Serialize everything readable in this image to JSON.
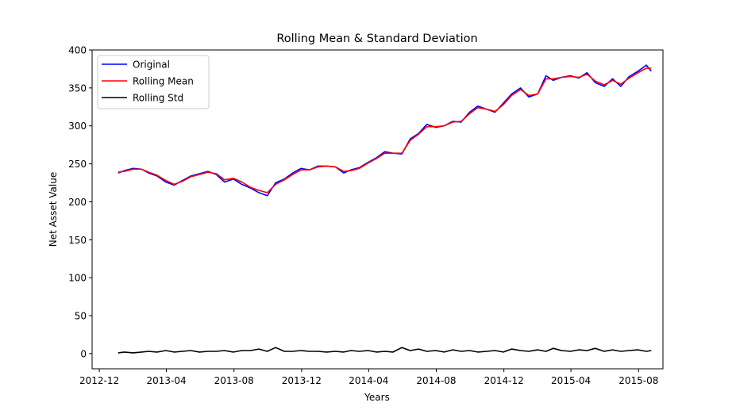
{
  "chart_data": {
    "type": "line",
    "title": "Rolling Mean & Standard Deviation",
    "xlabel": "Years",
    "ylabel": "Net Asset Value",
    "xlim": [
      "2012-11-18",
      "2015-09-14"
    ],
    "ylim": [
      -20,
      400
    ],
    "x_ticks": [
      {
        "date": "2012-12-01",
        "label": "2012-12"
      },
      {
        "date": "2013-04-01",
        "label": "2013-04"
      },
      {
        "date": "2013-08-01",
        "label": "2013-08"
      },
      {
        "date": "2013-12-01",
        "label": "2013-12"
      },
      {
        "date": "2014-04-01",
        "label": "2014-04"
      },
      {
        "date": "2014-08-01",
        "label": "2014-08"
      },
      {
        "date": "2014-12-01",
        "label": "2014-12"
      },
      {
        "date": "2015-04-01",
        "label": "2015-04"
      },
      {
        "date": "2015-08-01",
        "label": "2015-08"
      }
    ],
    "y_ticks": [
      {
        "value": 0,
        "label": "0"
      },
      {
        "value": 50,
        "label": "50"
      },
      {
        "value": 100,
        "label": "100"
      },
      {
        "value": 150,
        "label": "150"
      },
      {
        "value": 200,
        "label": "200"
      },
      {
        "value": 250,
        "label": "250"
      },
      {
        "value": 300,
        "label": "300"
      },
      {
        "value": 350,
        "label": "350"
      },
      {
        "value": 400,
        "label": "400"
      }
    ],
    "grid": false,
    "legend_position": "top-left",
    "series": [
      {
        "name": "Original",
        "color": "#0000ff",
        "points": [
          [
            "2013-01-04",
            238
          ],
          [
            "2013-01-15",
            241
          ],
          [
            "2013-01-31",
            244
          ],
          [
            "2013-02-15",
            243
          ],
          [
            "2013-02-28",
            238
          ],
          [
            "2013-03-15",
            234
          ],
          [
            "2013-03-31",
            226
          ],
          [
            "2013-04-15",
            222
          ],
          [
            "2013-04-30",
            228
          ],
          [
            "2013-05-15",
            234
          ],
          [
            "2013-05-31",
            237
          ],
          [
            "2013-06-15",
            240
          ],
          [
            "2013-06-30",
            236
          ],
          [
            "2013-07-15",
            226
          ],
          [
            "2013-07-31",
            230
          ],
          [
            "2013-08-15",
            223
          ],
          [
            "2013-08-31",
            218
          ],
          [
            "2013-09-15",
            212
          ],
          [
            "2013-09-30",
            208
          ],
          [
            "2013-10-15",
            225
          ],
          [
            "2013-10-31",
            230
          ],
          [
            "2013-11-15",
            238
          ],
          [
            "2013-11-30",
            244
          ],
          [
            "2013-12-15",
            242
          ],
          [
            "2013-12-31",
            247
          ],
          [
            "2014-01-15",
            247
          ],
          [
            "2014-01-31",
            246
          ],
          [
            "2014-02-15",
            238
          ],
          [
            "2014-02-28",
            242
          ],
          [
            "2014-03-15",
            245
          ],
          [
            "2014-03-31",
            252
          ],
          [
            "2014-04-15",
            258
          ],
          [
            "2014-04-30",
            266
          ],
          [
            "2014-05-15",
            264
          ],
          [
            "2014-05-31",
            263
          ],
          [
            "2014-06-15",
            283
          ],
          [
            "2014-06-30",
            290
          ],
          [
            "2014-07-15",
            302
          ],
          [
            "2014-07-31",
            298
          ],
          [
            "2014-08-15",
            300
          ],
          [
            "2014-08-31",
            306
          ],
          [
            "2014-09-15",
            305
          ],
          [
            "2014-09-30",
            318
          ],
          [
            "2014-10-15",
            326
          ],
          [
            "2014-10-31",
            322
          ],
          [
            "2014-11-15",
            318
          ],
          [
            "2014-11-30",
            330
          ],
          [
            "2014-12-15",
            342
          ],
          [
            "2014-12-31",
            350
          ],
          [
            "2015-01-15",
            338
          ],
          [
            "2015-01-31",
            342
          ],
          [
            "2015-02-15",
            366
          ],
          [
            "2015-02-28",
            360
          ],
          [
            "2015-03-15",
            364
          ],
          [
            "2015-03-31",
            366
          ],
          [
            "2015-04-15",
            363
          ],
          [
            "2015-04-30",
            370
          ],
          [
            "2015-05-15",
            357
          ],
          [
            "2015-05-31",
            352
          ],
          [
            "2015-06-15",
            362
          ],
          [
            "2015-06-30",
            352
          ],
          [
            "2015-07-15",
            365
          ],
          [
            "2015-07-31",
            372
          ],
          [
            "2015-08-15",
            380
          ],
          [
            "2015-08-24",
            372
          ]
        ]
      },
      {
        "name": "Rolling Mean",
        "color": "#ff0000",
        "points": [
          [
            "2013-01-04",
            239
          ],
          [
            "2013-01-15",
            240
          ],
          [
            "2013-01-31",
            243
          ],
          [
            "2013-02-15",
            243
          ],
          [
            "2013-02-28",
            239
          ],
          [
            "2013-03-15",
            235
          ],
          [
            "2013-03-31",
            228
          ],
          [
            "2013-04-15",
            223
          ],
          [
            "2013-04-30",
            227
          ],
          [
            "2013-05-15",
            233
          ],
          [
            "2013-05-31",
            236
          ],
          [
            "2013-06-15",
            239
          ],
          [
            "2013-06-30",
            237
          ],
          [
            "2013-07-15",
            229
          ],
          [
            "2013-07-31",
            231
          ],
          [
            "2013-08-15",
            226
          ],
          [
            "2013-08-31",
            219
          ],
          [
            "2013-09-15",
            215
          ],
          [
            "2013-09-30",
            212
          ],
          [
            "2013-10-15",
            223
          ],
          [
            "2013-10-31",
            229
          ],
          [
            "2013-11-15",
            236
          ],
          [
            "2013-11-30",
            242
          ],
          [
            "2013-12-15",
            242
          ],
          [
            "2013-12-31",
            246
          ],
          [
            "2014-01-15",
            247
          ],
          [
            "2014-01-31",
            246
          ],
          [
            "2014-02-15",
            240
          ],
          [
            "2014-02-28",
            241
          ],
          [
            "2014-03-15",
            244
          ],
          [
            "2014-03-31",
            251
          ],
          [
            "2014-04-15",
            257
          ],
          [
            "2014-04-30",
            264
          ],
          [
            "2014-05-15",
            264
          ],
          [
            "2014-05-31",
            264
          ],
          [
            "2014-06-15",
            281
          ],
          [
            "2014-06-30",
            289
          ],
          [
            "2014-07-15",
            299
          ],
          [
            "2014-07-31",
            299
          ],
          [
            "2014-08-15",
            300
          ],
          [
            "2014-08-31",
            305
          ],
          [
            "2014-09-15",
            306
          ],
          [
            "2014-09-30",
            316
          ],
          [
            "2014-10-15",
            324
          ],
          [
            "2014-10-31",
            322
          ],
          [
            "2014-11-15",
            319
          ],
          [
            "2014-11-30",
            328
          ],
          [
            "2014-12-15",
            340
          ],
          [
            "2014-12-31",
            348
          ],
          [
            "2015-01-15",
            340
          ],
          [
            "2015-01-31",
            342
          ],
          [
            "2015-02-15",
            362
          ],
          [
            "2015-02-28",
            362
          ],
          [
            "2015-03-15",
            364
          ],
          [
            "2015-03-31",
            365
          ],
          [
            "2015-04-15",
            364
          ],
          [
            "2015-04-30",
            368
          ],
          [
            "2015-05-15",
            359
          ],
          [
            "2015-05-31",
            354
          ],
          [
            "2015-06-15",
            360
          ],
          [
            "2015-06-30",
            355
          ],
          [
            "2015-07-15",
            363
          ],
          [
            "2015-07-31",
            370
          ],
          [
            "2015-08-15",
            376
          ],
          [
            "2015-08-24",
            376
          ]
        ]
      },
      {
        "name": "Rolling Std",
        "color": "#000000",
        "points": [
          [
            "2013-01-04",
            1
          ],
          [
            "2013-01-15",
            2
          ],
          [
            "2013-01-31",
            1
          ],
          [
            "2013-02-15",
            2
          ],
          [
            "2013-02-28",
            3
          ],
          [
            "2013-03-15",
            2
          ],
          [
            "2013-03-31",
            4
          ],
          [
            "2013-04-15",
            2
          ],
          [
            "2013-04-30",
            3
          ],
          [
            "2013-05-15",
            4
          ],
          [
            "2013-05-31",
            2
          ],
          [
            "2013-06-15",
            3
          ],
          [
            "2013-06-30",
            3
          ],
          [
            "2013-07-15",
            4
          ],
          [
            "2013-07-31",
            2
          ],
          [
            "2013-08-15",
            4
          ],
          [
            "2013-08-31",
            4
          ],
          [
            "2013-09-15",
            6
          ],
          [
            "2013-09-30",
            3
          ],
          [
            "2013-10-15",
            8
          ],
          [
            "2013-10-31",
            3
          ],
          [
            "2013-11-15",
            3
          ],
          [
            "2013-11-30",
            4
          ],
          [
            "2013-12-15",
            3
          ],
          [
            "2013-12-31",
            3
          ],
          [
            "2014-01-15",
            2
          ],
          [
            "2014-01-31",
            3
          ],
          [
            "2014-02-15",
            2
          ],
          [
            "2014-02-28",
            4
          ],
          [
            "2014-03-15",
            3
          ],
          [
            "2014-03-31",
            4
          ],
          [
            "2014-04-15",
            2
          ],
          [
            "2014-04-30",
            3
          ],
          [
            "2014-05-15",
            2
          ],
          [
            "2014-05-31",
            8
          ],
          [
            "2014-06-15",
            4
          ],
          [
            "2014-06-30",
            6
          ],
          [
            "2014-07-15",
            3
          ],
          [
            "2014-07-31",
            4
          ],
          [
            "2014-08-15",
            2
          ],
          [
            "2014-08-31",
            5
          ],
          [
            "2014-09-15",
            3
          ],
          [
            "2014-09-30",
            4
          ],
          [
            "2014-10-15",
            2
          ],
          [
            "2014-10-31",
            3
          ],
          [
            "2014-11-15",
            4
          ],
          [
            "2014-11-30",
            2
          ],
          [
            "2014-12-15",
            6
          ],
          [
            "2014-12-31",
            4
          ],
          [
            "2015-01-15",
            3
          ],
          [
            "2015-01-31",
            5
          ],
          [
            "2015-02-15",
            3
          ],
          [
            "2015-02-28",
            7
          ],
          [
            "2015-03-15",
            4
          ],
          [
            "2015-03-31",
            3
          ],
          [
            "2015-04-15",
            5
          ],
          [
            "2015-04-30",
            4
          ],
          [
            "2015-05-15",
            7
          ],
          [
            "2015-05-31",
            3
          ],
          [
            "2015-06-15",
            5
          ],
          [
            "2015-06-30",
            3
          ],
          [
            "2015-07-15",
            4
          ],
          [
            "2015-07-31",
            5
          ],
          [
            "2015-08-15",
            3
          ],
          [
            "2015-08-24",
            4
          ]
        ]
      }
    ]
  }
}
